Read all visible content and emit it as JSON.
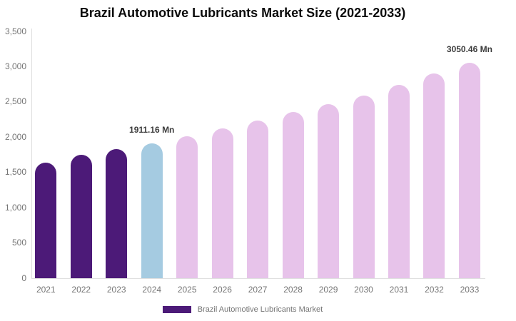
{
  "chart_data": {
    "type": "bar",
    "title": "Brazil Automotive Lubricants Market Size (2021-2033)",
    "xlabel": "",
    "ylabel": "",
    "unit": "Mn",
    "categories": [
      "2021",
      "2022",
      "2023",
      "2024",
      "2025",
      "2026",
      "2027",
      "2028",
      "2029",
      "2030",
      "2031",
      "2032",
      "2033"
    ],
    "values": [
      1640,
      1745,
      1830,
      1911.16,
      2013,
      2124,
      2233,
      2352,
      2470,
      2590,
      2745,
      2900,
      3050.46
    ],
    "ylim": [
      0,
      3500
    ],
    "ytick_step": 500,
    "ytick_labels": [
      "3,500",
      "3,000",
      "2,500",
      "2,000",
      "1,500",
      "1,000",
      "500",
      "0"
    ],
    "ytick_values": [
      3500,
      3000,
      2500,
      2000,
      1500,
      1000,
      500,
      0
    ],
    "grid": false,
    "bar_colors": [
      "#4C1A78",
      "#4C1A78",
      "#4C1A78",
      "#A5CBE1",
      "#E7C3EA",
      "#E7C3EA",
      "#E7C3EA",
      "#E7C3EA",
      "#E7C3EA",
      "#E7C3EA",
      "#E7C3EA",
      "#E7C3EA",
      "#E7C3EA"
    ],
    "color_meaning": {
      "historical": "#4C1A78",
      "base_year": "#A5CBE1",
      "forecast": "#E7C3EA"
    },
    "annotations": [
      {
        "category": "2024",
        "text": "1911.16 Mn"
      },
      {
        "category": "2033",
        "text": "3050.46 Mn"
      }
    ],
    "legend_position": "bottom",
    "legend_label": "Brazil Automotive Lubricants Market",
    "legend_color": "#4C1A78",
    "axis_text_color": "#757575",
    "annotation_text_color": "#3c3c3c",
    "axis_line_color": "#dddddd"
  }
}
